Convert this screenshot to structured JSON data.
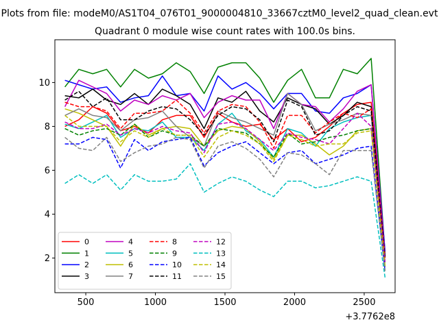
{
  "chart_data": {
    "type": "line",
    "suptitle": "Plots from file: modeM0/AS1T04_076T01_9000004810_33667cztM0_level2_quad_clean.evt",
    "title": "Quadrant 0 module wise count rates with 100.0s bins.",
    "xlabel": "",
    "ylabel": "",
    "x_offset_label": "+3.7762e8",
    "xlim": [
      278,
      2722
    ],
    "ylim": [
      0.42,
      11.95
    ],
    "xticks": [
      500,
      1000,
      1500,
      2000,
      2500
    ],
    "yticks": [
      2,
      4,
      6,
      8,
      10
    ],
    "x": [
      350,
      450,
      550,
      650,
      750,
      850,
      950,
      1050,
      1150,
      1250,
      1350,
      1450,
      1550,
      1650,
      1750,
      1850,
      1950,
      2050,
      2150,
      2250,
      2350,
      2450,
      2550,
      2650
    ],
    "legend": {
      "location": "lower-left",
      "columns": 4
    },
    "series": [
      {
        "name": "0",
        "color": "#ff0000",
        "dash": "solid",
        "values": [
          8.0,
          8.3,
          8.9,
          8.6,
          7.8,
          8.0,
          7.7,
          8.3,
          8.5,
          8.5,
          7.5,
          8.6,
          8.2,
          8.0,
          8.1,
          7.4,
          7.9,
          7.3,
          7.5,
          8.0,
          8.6,
          9.0,
          9.1,
          2.1
        ]
      },
      {
        "name": "1",
        "color": "#008000",
        "dash": "solid",
        "values": [
          9.8,
          10.6,
          10.4,
          10.6,
          9.8,
          10.6,
          10.2,
          10.4,
          10.9,
          10.5,
          9.5,
          10.7,
          10.9,
          10.9,
          10.2,
          9.1,
          10.1,
          10.6,
          9.3,
          9.3,
          10.6,
          10.4,
          11.1,
          2.2
        ]
      },
      {
        "name": "2",
        "color": "#0000ff",
        "dash": "solid",
        "values": [
          10.1,
          9.9,
          9.7,
          9.8,
          9.1,
          9.3,
          9.4,
          10.3,
          9.4,
          9.5,
          8.7,
          10.3,
          9.7,
          10.0,
          9.5,
          8.8,
          9.5,
          9.5,
          8.7,
          8.6,
          9.3,
          9.5,
          9.9,
          2.3
        ]
      },
      {
        "name": "3",
        "color": "#000000",
        "dash": "solid",
        "values": [
          9.4,
          9.3,
          9.7,
          9.2,
          9.0,
          9.5,
          9.0,
          9.7,
          9.4,
          9.0,
          7.9,
          9.3,
          9.1,
          9.6,
          8.7,
          8.2,
          9.3,
          9.0,
          8.8,
          8.1,
          8.5,
          9.1,
          8.9,
          2.1
        ]
      },
      {
        "name": "4",
        "color": "#bf00bf",
        "dash": "solid",
        "values": [
          8.9,
          10.1,
          9.8,
          9.5,
          8.7,
          9.2,
          9.0,
          9.4,
          9.2,
          9.5,
          8.4,
          9.1,
          9.4,
          9.2,
          9.2,
          7.9,
          9.5,
          9.0,
          8.9,
          8.2,
          8.8,
          9.6,
          9.9,
          2.1
        ]
      },
      {
        "name": "5",
        "color": "#00bfbf",
        "dash": "solid",
        "values": [
          8.1,
          7.9,
          8.2,
          8.5,
          7.5,
          7.9,
          7.8,
          8.2,
          7.5,
          7.5,
          6.9,
          8.1,
          8.6,
          7.8,
          7.4,
          6.6,
          7.9,
          7.7,
          7.1,
          7.9,
          8.2,
          8.4,
          8.5,
          1.6
        ]
      },
      {
        "name": "6",
        "color": "#bfbf00",
        "dash": "solid",
        "values": [
          8.8,
          8.6,
          8.3,
          8.0,
          7.1,
          8.1,
          7.6,
          7.9,
          8.0,
          7.9,
          7.1,
          7.8,
          8.0,
          7.9,
          7.3,
          6.5,
          7.6,
          7.6,
          7.2,
          6.7,
          7.1,
          7.8,
          7.9,
          1.6
        ]
      },
      {
        "name": "7",
        "color": "#808080",
        "dash": "solid",
        "values": [
          8.5,
          8.8,
          8.5,
          8.4,
          7.8,
          8.3,
          8.4,
          8.7,
          8.0,
          7.5,
          7.1,
          8.7,
          8.4,
          8.2,
          7.9,
          7.6,
          9.5,
          9.0,
          7.8,
          8.1,
          8.3,
          8.6,
          8.5,
          2.0
        ]
      },
      {
        "name": "8",
        "color": "#ff0000",
        "dash": "dashed",
        "values": [
          9.1,
          8.9,
          8.9,
          8.7,
          7.9,
          8.6,
          8.6,
          8.7,
          9.2,
          8.6,
          7.7,
          8.7,
          9.0,
          8.9,
          8.2,
          7.0,
          8.5,
          8.5,
          7.7,
          8.2,
          8.6,
          8.4,
          8.8,
          2.0
        ]
      },
      {
        "name": "9",
        "color": "#008000",
        "dash": "dashed",
        "values": [
          7.9,
          7.6,
          7.8,
          7.9,
          7.6,
          8.1,
          7.5,
          7.8,
          7.6,
          7.6,
          7.1,
          7.9,
          7.8,
          7.7,
          7.2,
          6.6,
          7.7,
          7.2,
          7.3,
          7.5,
          7.6,
          7.8,
          7.9,
          1.8
        ]
      },
      {
        "name": "10",
        "color": "#0000ff",
        "dash": "dashed",
        "values": [
          7.2,
          7.2,
          7.5,
          7.4,
          6.1,
          7.4,
          6.9,
          7.3,
          7.4,
          7.5,
          6.2,
          6.8,
          7.1,
          7.3,
          6.8,
          6.3,
          6.8,
          6.9,
          6.3,
          6.5,
          6.7,
          7.0,
          7.1,
          1.4
        ]
      },
      {
        "name": "11",
        "color": "#000000",
        "dash": "dashed",
        "values": [
          9.2,
          9.6,
          8.9,
          9.3,
          8.3,
          8.3,
          8.7,
          8.9,
          8.8,
          8.3,
          7.6,
          8.5,
          8.9,
          8.8,
          8.3,
          7.3,
          9.2,
          8.9,
          7.6,
          7.8,
          8.5,
          8.9,
          8.7,
          2.0
        ]
      },
      {
        "name": "12",
        "color": "#bf00bf",
        "dash": "dashed",
        "values": [
          8.2,
          7.9,
          7.9,
          8.1,
          7.6,
          7.9,
          7.7,
          8.0,
          7.8,
          7.7,
          6.8,
          8.1,
          8.2,
          7.9,
          7.4,
          6.9,
          7.7,
          7.5,
          7.4,
          7.2,
          7.9,
          8.6,
          8.0,
          1.8
        ]
      },
      {
        "name": "13",
        "color": "#00bfbf",
        "dash": "dashed",
        "values": [
          5.4,
          5.8,
          5.4,
          5.8,
          5.1,
          5.8,
          5.5,
          5.5,
          5.6,
          6.3,
          5.0,
          5.4,
          5.7,
          5.5,
          5.1,
          4.8,
          5.5,
          5.5,
          5.2,
          5.3,
          5.5,
          5.7,
          5.5,
          1.1
        ]
      },
      {
        "name": "14",
        "color": "#bfbf00",
        "dash": "dashed",
        "values": [
          8.5,
          8.0,
          8.0,
          8.0,
          7.3,
          7.8,
          7.5,
          7.9,
          7.6,
          7.6,
          6.6,
          7.5,
          7.8,
          7.6,
          7.2,
          6.4,
          7.6,
          7.4,
          7.1,
          7.2,
          7.2,
          7.7,
          7.8,
          1.6
        ]
      },
      {
        "name": "15",
        "color": "#808080",
        "dash": "dashed",
        "values": [
          7.5,
          7.0,
          6.9,
          7.5,
          6.4,
          6.8,
          7.1,
          7.2,
          7.5,
          7.4,
          6.1,
          7.1,
          7.3,
          7.0,
          6.5,
          5.7,
          6.8,
          6.7,
          6.3,
          5.8,
          6.9,
          6.9,
          6.9,
          1.4
        ]
      }
    ]
  }
}
